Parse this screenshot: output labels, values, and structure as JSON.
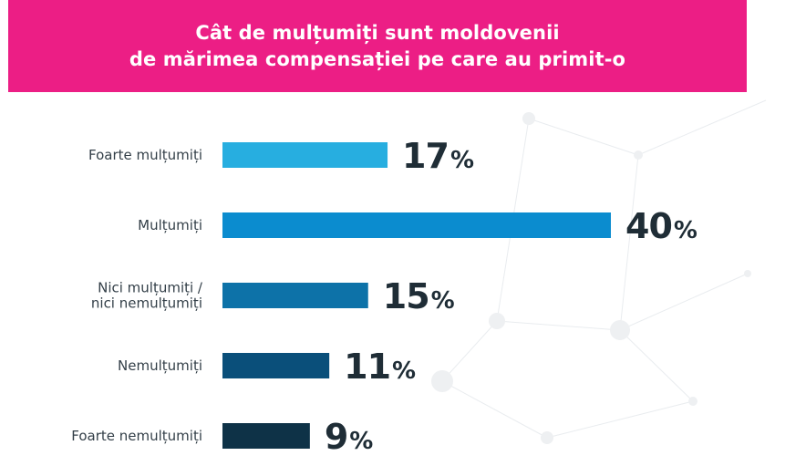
{
  "header": {
    "title_line1": "Cât de mulțumiți sunt moldovenii",
    "title_line2": "de mărimea compensației pe care au primit-o"
  },
  "colors": {
    "header_bg": "#ec1e85",
    "bars": [
      "#27aee0",
      "#0b8ccf",
      "#0d72a8",
      "#0a4f7a",
      "#0e3247"
    ]
  },
  "chart_data": {
    "type": "bar",
    "orientation": "horizontal",
    "title": "Cât de mulțumiți sunt moldovenii de mărimea compensației pe care au primit-o",
    "categories": [
      [
        "Foarte mulțumiți"
      ],
      [
        "Mulțumiți"
      ],
      [
        "Nici mulțumiți /",
        "nici nemulțumiți"
      ],
      [
        "Nemulțumiți"
      ],
      [
        "Foarte nemulțumiți"
      ]
    ],
    "values": [
      17,
      40,
      15,
      11,
      9
    ],
    "value_labels": [
      "17",
      "40",
      "15",
      "11",
      "9"
    ],
    "unit": "%",
    "xlim": [
      0,
      40
    ],
    "grid": false,
    "legend": "none"
  }
}
